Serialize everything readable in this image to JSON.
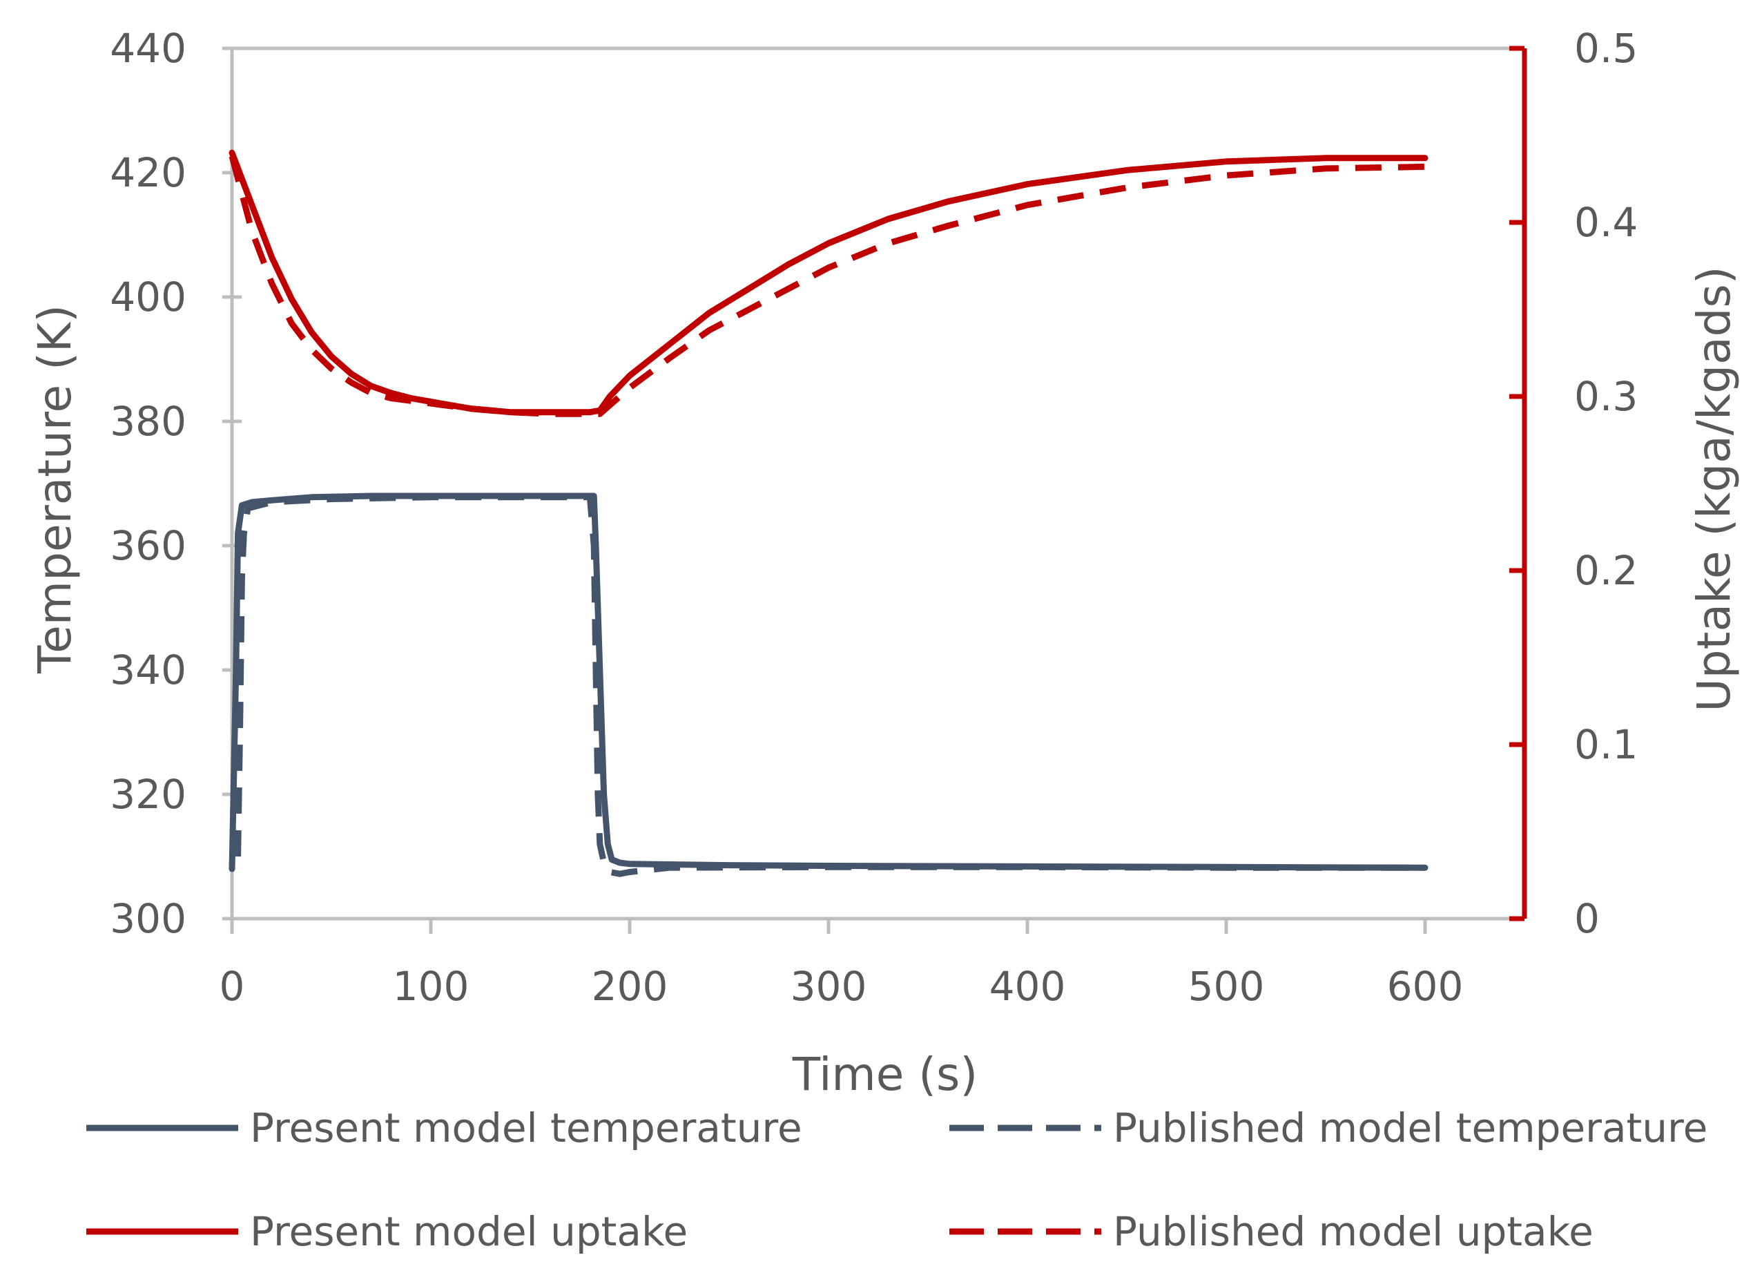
{
  "chart_data": {
    "type": "line",
    "title": "",
    "xlabel": "Time (s)",
    "ylabel": "Temperature (K)",
    "y2label": "Uptake (kga/kgads)",
    "xlim": [
      0,
      650
    ],
    "ylim": [
      300,
      440
    ],
    "y2lim": [
      0,
      0.5
    ],
    "xticks": [
      "0",
      "100",
      "200",
      "300",
      "400",
      "500",
      "600"
    ],
    "yticks": [
      "300",
      "320",
      "340",
      "360",
      "380",
      "400",
      "420",
      "440"
    ],
    "y2ticks": [
      "0",
      "0.1",
      "0.2",
      "0.3",
      "0.4",
      "0.5"
    ],
    "grid": false,
    "legend_position": "bottom",
    "colors": {
      "temperature": "#44546A",
      "uptake": "#C00000",
      "axis": "#BFBFBF",
      "text": "#595959"
    },
    "series": [
      {
        "name": "Present model temperature",
        "axis": "left",
        "style": "solid",
        "color": "#44546A",
        "x": [
          0,
          2,
          3,
          5,
          10,
          20,
          40,
          70,
          100,
          130,
          150,
          170,
          182,
          183,
          185,
          187,
          189,
          191,
          195,
          200,
          250,
          300,
          400,
          500,
          600
        ],
        "y": [
          308,
          340,
          362,
          366.5,
          367,
          367.3,
          367.8,
          368,
          368,
          368,
          368,
          368,
          368,
          360,
          340,
          320,
          312,
          309.5,
          309,
          308.8,
          308.6,
          308.5,
          308.4,
          308.3,
          308.2
        ]
      },
      {
        "name": "Published model temperature",
        "axis": "left",
        "style": "dashed",
        "color": "#44546A",
        "x": [
          3,
          4,
          5,
          6,
          8,
          20,
          50,
          100,
          150,
          180,
          182,
          183,
          184,
          185,
          187,
          190,
          195,
          200,
          220,
          300,
          400,
          500,
          600
        ],
        "y": [
          310,
          330,
          355,
          362,
          366,
          367,
          367.5,
          367.8,
          367.8,
          367.8,
          360,
          340,
          320,
          312,
          309,
          307.5,
          307.2,
          307.5,
          308.2,
          308.3,
          308.3,
          308.2,
          308.2
        ]
      },
      {
        "name": "Present model uptake",
        "axis": "right",
        "style": "solid",
        "color": "#C00000",
        "x": [
          0,
          10,
          20,
          30,
          40,
          50,
          60,
          70,
          80,
          90,
          100,
          120,
          140,
          160,
          180,
          185,
          190,
          200,
          220,
          240,
          260,
          280,
          300,
          330,
          360,
          400,
          450,
          500,
          550,
          600
        ],
        "y": [
          0.44,
          0.41,
          0.38,
          0.356,
          0.337,
          0.323,
          0.313,
          0.306,
          0.302,
          0.299,
          0.297,
          0.293,
          0.291,
          0.291,
          0.291,
          0.292,
          0.3,
          0.312,
          0.33,
          0.348,
          0.362,
          0.376,
          0.388,
          0.402,
          0.412,
          0.422,
          0.43,
          0.435,
          0.437,
          0.437
        ]
      },
      {
        "name": "Published model uptake",
        "axis": "right",
        "style": "dashed",
        "color": "#C00000",
        "x": [
          0,
          10,
          20,
          30,
          40,
          50,
          60,
          70,
          80,
          100,
          120,
          140,
          160,
          180,
          185,
          190,
          200,
          220,
          240,
          260,
          280,
          300,
          330,
          360,
          400,
          450,
          500,
          550,
          600
        ],
        "y": [
          0.438,
          0.395,
          0.365,
          0.342,
          0.327,
          0.316,
          0.308,
          0.302,
          0.299,
          0.296,
          0.293,
          0.291,
          0.29,
          0.29,
          0.29,
          0.295,
          0.305,
          0.322,
          0.338,
          0.35,
          0.362,
          0.374,
          0.388,
          0.398,
          0.41,
          0.42,
          0.427,
          0.431,
          0.432
        ]
      }
    ]
  }
}
